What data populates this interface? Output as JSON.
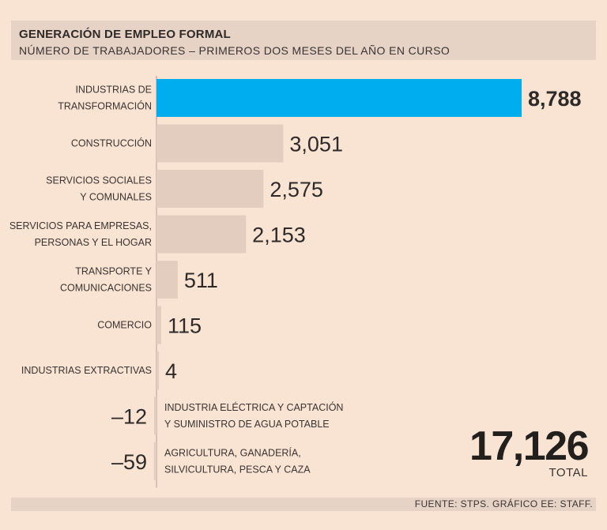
{
  "chart_data": {
    "type": "bar",
    "orientation": "horizontal",
    "title": "GENERACIÓN DE EMPLEO FORMAL",
    "subtitle": "NÚMERO DE TRABAJADORES – PRIMEROS DOS MESES DEL AÑO EN CURSO",
    "categories": [
      [
        "INDUSTRIAS DE",
        "TRANSFORMACIÓN"
      ],
      [
        "CONSTRUCCIÓN"
      ],
      [
        "SERVICIOS SOCIALES",
        "Y COMUNALES"
      ],
      [
        "SERVICIOS PARA EMPRESAS,",
        "PERSONAS Y EL HOGAR"
      ],
      [
        "TRANSPORTE Y",
        "COMUNICACIONES"
      ],
      [
        "COMERCIO"
      ],
      [
        "INDUSTRIAS EXTRACTIVAS"
      ],
      [
        "INDUSTRIA ELÉCTRICA Y CAPTACIÓN",
        "Y SUMINISTRO DE AGUA POTABLE"
      ],
      [
        "AGRICULTURA, GANADERÍA,",
        "SILVICULTURA, PESCA Y CAZA"
      ]
    ],
    "values": [
      8788,
      3051,
      2575,
      2153,
      511,
      115,
      4,
      -12,
      -59
    ],
    "value_labels": [
      "8,788",
      "3,051",
      "2,575",
      "2,153",
      "511",
      "115",
      "4",
      "–12",
      "–59"
    ],
    "highlight_index": 0,
    "colors": {
      "highlight": "#00aeef",
      "bar": "#e2cdbf",
      "axis": "#d5c2b5"
    },
    "total": {
      "value": "17,126",
      "label": "TOTAL"
    },
    "source": "FUENTE: STPS. GRÁFICO EE: STAFF."
  }
}
